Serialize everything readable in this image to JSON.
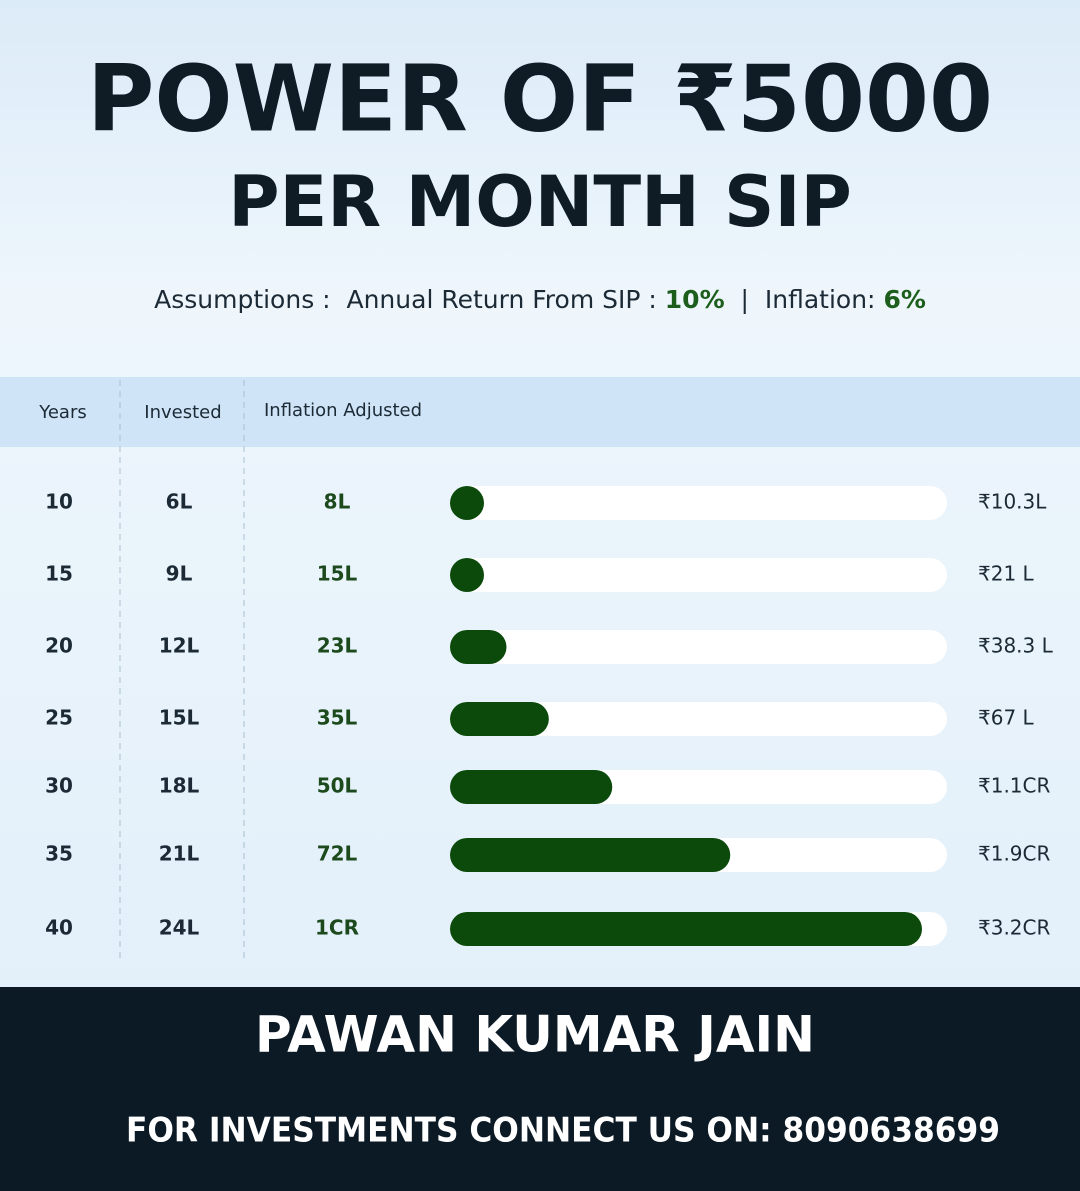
{
  "header": {
    "title": "POWER OF ₹5000",
    "subtitle": "PER MONTH SIP",
    "assumptions": {
      "label": "Assumptions :  Annual Return From SIP :",
      "return": "10%",
      "separator": "|",
      "inflation_label": "Inflation:",
      "inflation": "6%"
    }
  },
  "table": {
    "columns": [
      "Years",
      "Invested",
      "Inflation Adjusted"
    ],
    "rows": [
      [
        "6L",
        "8L"
      ],
      [
        "9L",
        "15L"
      ],
      [
        "12L",
        "23L"
      ],
      [
        "15L",
        "35L"
      ],
      [
        "18L",
        "50L"
      ],
      [
        "21L",
        "72L"
      ],
      [
        "24L",
        "1CR"
      ]
    ]
  },
  "chart_data": {
    "type": "bar",
    "categories": [
      "10",
      "15",
      "20",
      "25",
      "30",
      "35",
      "40"
    ],
    "values": [
      10.3,
      21,
      38.3,
      67,
      110,
      190,
      320
    ],
    "value_labels": [
      "₹10.3L",
      "₹21 L",
      "₹38.3 L",
      "₹67 L",
      "₹1.1CR",
      "₹1.9CR",
      "₹3.2CR"
    ],
    "color": "#0b4a0b"
  },
  "footer": {
    "name": "PAWAN KUMAR JAIN",
    "contact": "FOR INVESTMENTS CONNECT US ON: 8090638699"
  }
}
